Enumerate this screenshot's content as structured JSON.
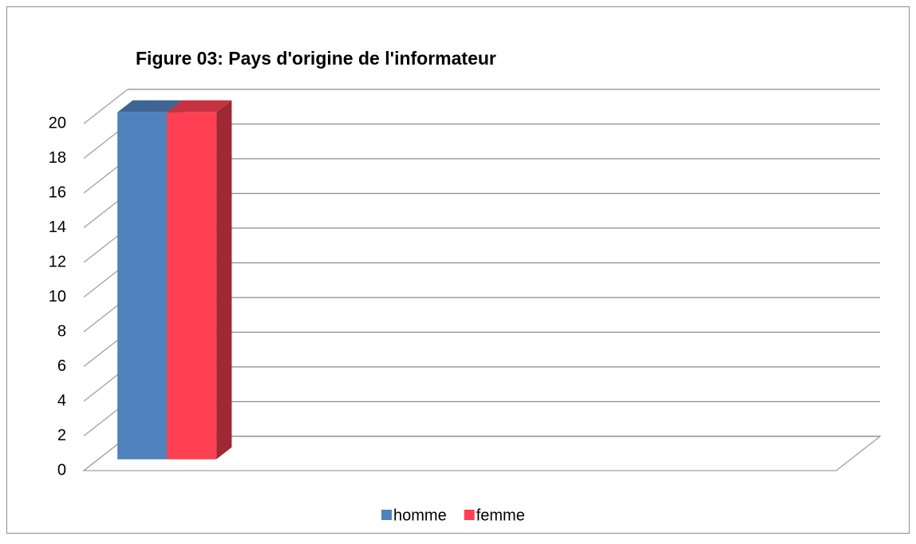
{
  "chart_data": {
    "type": "bar3d",
    "title": "Figure 03: Pays d'origine de l'informateur",
    "categories": [
      null
    ],
    "series": [
      {
        "name": "homme",
        "color": "#4f81bd",
        "values": [
          20
        ]
      },
      {
        "name": "femme",
        "color": "#ff4052",
        "values": [
          20
        ]
      }
    ],
    "ylim": [
      0,
      20
    ],
    "yticks": [
      0,
      2,
      4,
      6,
      8,
      10,
      12,
      14,
      16,
      18,
      20
    ],
    "grid": true,
    "legend": "bottom"
  }
}
